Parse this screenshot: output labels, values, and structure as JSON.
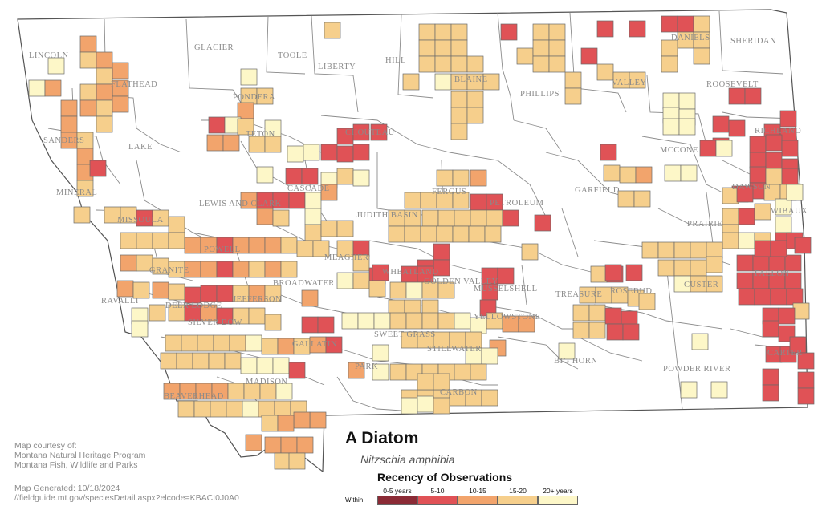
{
  "colors": {
    "r0_5": "#8b2b36",
    "r5_10": "#e05256",
    "r10_15": "#f2a46c",
    "r15_20": "#f6cf8c",
    "r20_plus": "#fdf7c8",
    "county_line": "#8c8c8c",
    "state_line": "#555555"
  },
  "counties": [
    "LINCOLN",
    "FLATHEAD",
    "GLACIER",
    "TOOLE",
    "LIBERTY",
    "HILL",
    "BLAINE",
    "PHILLIPS",
    "VALLEY",
    "DANIELS",
    "SHERIDAN",
    "ROOSEVELT",
    "PONDERA",
    "TETON",
    "CHOUTEAU",
    "SANDERS",
    "LAKE",
    "RICHLAND",
    "MCCONE",
    "MINERAL",
    "CASCADE",
    "FERGUS",
    "PETROLEUM",
    "GARFIELD",
    "DAWSON",
    "WIBAUX",
    "LEWIS AND CLARK",
    "JUDITH BASIN",
    "MISSOULA",
    "PRAIRIE",
    "POWELL",
    "MEAGHER",
    "GRANITE",
    "WHEATLAND",
    "GOLDEN VALLEY",
    "MUSSELSHELL",
    "BROADWATER",
    "FALLON",
    "RAVALLI",
    "DEER LODGE",
    "JEFFERSON",
    "TREASURE",
    "ROSEBUD",
    "CUSTER",
    "SILVER BOW",
    "YELLOWSTONE",
    "SWEET GRASS",
    "GALLATIN",
    "STILLWATER",
    "BIG HORN",
    "CARTER",
    "PARK",
    "POWDER RIVER",
    "MADISON",
    "BEAVERHEAD",
    "CARBON"
  ],
  "title": "A Diatom",
  "subtitle": "Nitzschia amphibia",
  "credits": {
    "line1": "Map courtesy of:",
    "line2": "Montana Natural Heritage Program",
    "line3": "Montana Fish, Wildlife and Parks",
    "generated": "Map Generated: 10/18/2024",
    "url": "//fieldguide.mt.gov/speciesDetail.aspx?elcode=KBACI0J0A0"
  },
  "legend": {
    "title": "Recency of Observations",
    "within": "Within",
    "items": [
      {
        "label": "0-5 years",
        "color": "#8b2b36"
      },
      {
        "label": "5-10",
        "color": "#e05256"
      },
      {
        "label": "10-15",
        "color": "#f2a46c"
      },
      {
        "label": "15-20",
        "color": "#f6cf8c"
      },
      {
        "label": "20+ years",
        "color": "#fdf7c8"
      }
    ]
  }
}
